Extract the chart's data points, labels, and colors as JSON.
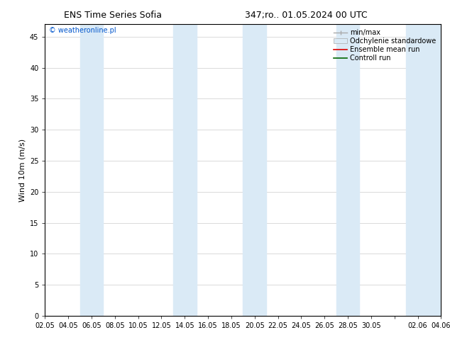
{
  "title_left": "ENS Time Series Sofia",
  "title_right": "347;ro.. 01.05.2024 00 UTC",
  "ylabel": "Wind 10m (m/s)",
  "watermark": "© weatheronline.pl",
  "xlim_start": 0,
  "xlim_end": 34,
  "ylim": [
    0,
    47
  ],
  "yticks": [
    0,
    5,
    10,
    15,
    20,
    25,
    30,
    35,
    40,
    45
  ],
  "xtick_labels": [
    "02.05",
    "04.05",
    "06.05",
    "08.05",
    "10.05",
    "12.05",
    "14.05",
    "16.05",
    "18.05",
    "20.05",
    "22.05",
    "24.05",
    "26.05",
    "28.05",
    "30.05",
    "",
    "02.06",
    "04.06"
  ],
  "xtick_positions": [
    0,
    2,
    4,
    6,
    8,
    10,
    12,
    14,
    16,
    18,
    20,
    22,
    24,
    26,
    28,
    30,
    32,
    34
  ],
  "background_color": "#ffffff",
  "band_color": "#daeaf6",
  "band_positions": [
    [
      3,
      5
    ],
    [
      11,
      13
    ],
    [
      17,
      19
    ],
    [
      25,
      27
    ],
    [
      31,
      35
    ]
  ],
  "title_fontsize": 9,
  "axis_fontsize": 8,
  "tick_fontsize": 7,
  "legend_fontsize": 7,
  "watermark_fontsize": 7
}
